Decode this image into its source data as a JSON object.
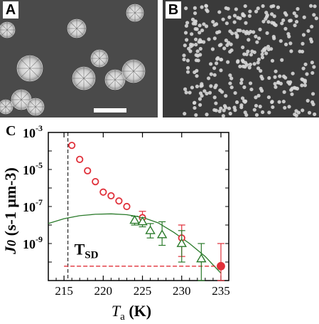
{
  "panels": {
    "a_label": "A",
    "b_label": "B",
    "c_label": "C"
  },
  "chart_data": {
    "type": "scatter",
    "xlabel": "T",
    "xlabel_sub": "a",
    "xlabel_unit": "(K)",
    "ylabel": "J",
    "ylabel_sub": "0",
    "ylabel_unit": "(s-1 μm-3)",
    "xlim": [
      213,
      236
    ],
    "ylim_log10": [
      -11,
      -3
    ],
    "yscale": "log",
    "x_ticks": [
      215,
      220,
      225,
      230,
      235
    ],
    "y_ticks": [
      {
        "exp": -3,
        "label": "-3"
      },
      {
        "exp": -5,
        "label": "-5"
      },
      {
        "exp": -7,
        "label": "-7"
      },
      {
        "exp": -9,
        "label": "-9"
      }
    ],
    "annotation": {
      "text": "T",
      "sub": "SD",
      "x": 215.5
    },
    "series": [
      {
        "marker": "circle",
        "color": "#e0303a",
        "filled": false,
        "points": [
          {
            "x": 216.0,
            "y": 0.0002
          },
          {
            "x": 217.0,
            "y": 3.5e-05
          },
          {
            "x": 218.0,
            "y": 8.5e-06
          },
          {
            "x": 219.0,
            "y": 2.2e-06
          },
          {
            "x": 220.0,
            "y": 6e-07
          },
          {
            "x": 221.0,
            "y": 3.8e-07
          },
          {
            "x": 222.0,
            "y": 2e-07
          },
          {
            "x": 223.0,
            "y": 1e-07
          },
          {
            "x": 225.0,
            "y": 2.5e-08,
            "yerr": [
              1.2e-08,
              5.5e-08
            ]
          },
          {
            "x": 230.0,
            "y": 2e-09,
            "yerr": [
              2e-10,
              1e-08
            ]
          }
        ]
      },
      {
        "marker": "triangle",
        "color": "#2a7a2a",
        "filled": false,
        "points": [
          {
            "x": 224.0,
            "y": 1.8e-08,
            "yerr": [
              1e-08,
              3e-08
            ]
          },
          {
            "x": 225.0,
            "y": 1.5e-08,
            "yerr": [
              8e-09,
              2.5e-08
            ]
          },
          {
            "x": 226.0,
            "y": 5e-09,
            "yerr": [
              2e-09,
              1.2e-08
            ]
          },
          {
            "x": 227.5,
            "y": 3e-09,
            "yerr": [
              8e-10,
              1.5e-08
            ]
          },
          {
            "x": 230.0,
            "y": 1e-09,
            "yerr": [
              1e-10,
              5e-09
            ]
          },
          {
            "x": 232.5,
            "y": 1.5e-10,
            "yerr": [
              1e-11,
              1e-09
            ]
          }
        ]
      },
      {
        "marker": "circle",
        "color": "#e0303a",
        "filled": true,
        "points": [
          {
            "x": 235.0,
            "y": 6e-11,
            "yerr": [
              1e-11,
              1e-09
            ]
          }
        ]
      }
    ],
    "curves": [
      {
        "style": "solid",
        "color": "#2a7a2a",
        "points": [
          [
            213,
            1.2e-08
          ],
          [
            215,
            2.2e-08
          ],
          [
            217,
            3.2e-08
          ],
          [
            219,
            3.8e-08
          ],
          [
            221,
            4e-08
          ],
          [
            223,
            3.6e-08
          ],
          [
            225,
            2.6e-08
          ],
          [
            227,
            1.3e-08
          ],
          [
            229,
            4e-09
          ],
          [
            231,
            1e-09
          ],
          [
            233,
            2e-10
          ],
          [
            234,
            7e-11
          ],
          [
            235,
            2.5e-11
          ]
        ]
      },
      {
        "style": "dashed",
        "color": "#e0303a",
        "points": [
          [
            215,
            6e-11
          ],
          [
            235,
            6e-11
          ]
        ]
      }
    ],
    "vertical_line": {
      "x": 215.5,
      "style": "dashed",
      "color": "#000000"
    }
  }
}
